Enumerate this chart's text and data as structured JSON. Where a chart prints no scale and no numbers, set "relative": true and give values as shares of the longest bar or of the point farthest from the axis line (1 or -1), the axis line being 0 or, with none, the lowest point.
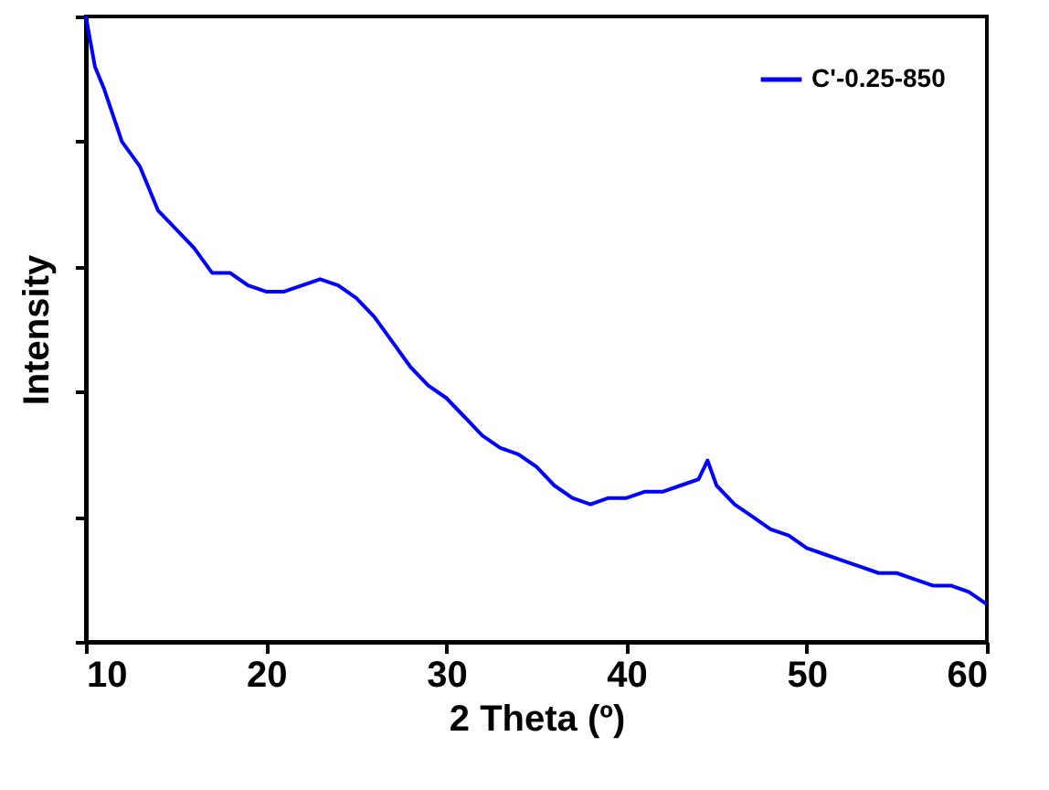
{
  "chart_data": {
    "type": "line",
    "xlabel": "2 Theta (º)",
    "ylabel": "Intensity",
    "relative": true,
    "xlim": [
      10,
      60
    ],
    "xticks": [
      10,
      20,
      30,
      40,
      50,
      60
    ],
    "legend": "top right",
    "grid": false,
    "series": [
      {
        "name": "C'-0.25-850",
        "color": "#0000ff",
        "x": [
          10,
          10.5,
          11,
          12,
          13,
          14,
          15,
          16,
          17,
          18,
          19,
          20,
          21,
          22,
          23,
          24,
          25,
          26,
          27,
          28,
          29,
          30,
          31,
          32,
          33,
          34,
          35,
          36,
          37,
          38,
          39,
          40,
          41,
          42,
          43,
          44,
          44.5,
          45,
          46,
          47,
          48,
          49,
          50,
          51,
          52,
          53,
          54,
          55,
          56,
          57,
          58,
          59,
          60
        ],
        "values": [
          1.0,
          0.92,
          0.885,
          0.8,
          0.76,
          0.69,
          0.66,
          0.63,
          0.59,
          0.59,
          0.57,
          0.56,
          0.56,
          0.57,
          0.58,
          0.57,
          0.55,
          0.52,
          0.48,
          0.44,
          0.41,
          0.39,
          0.36,
          0.33,
          0.31,
          0.3,
          0.28,
          0.25,
          0.23,
          0.22,
          0.23,
          0.23,
          0.24,
          0.24,
          0.25,
          0.26,
          0.29,
          0.25,
          0.22,
          0.2,
          0.18,
          0.17,
          0.15,
          0.14,
          0.13,
          0.12,
          0.11,
          0.11,
          0.1,
          0.09,
          0.09,
          0.08,
          0.06
        ]
      }
    ]
  }
}
